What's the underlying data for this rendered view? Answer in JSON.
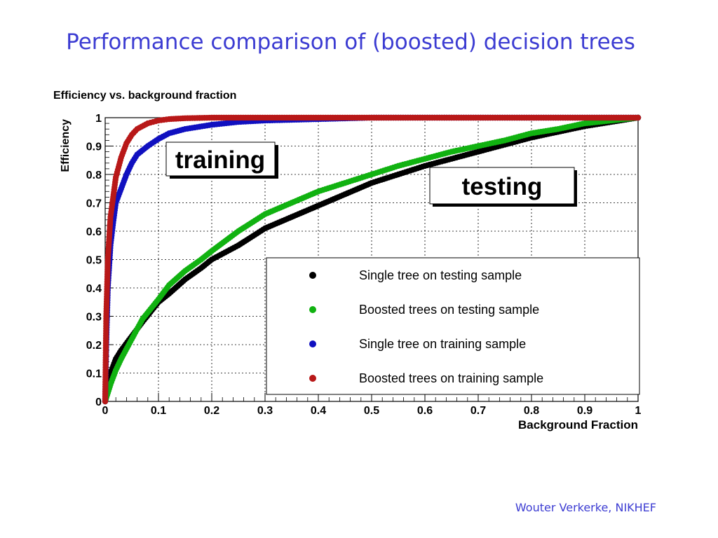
{
  "slide": {
    "title": "Performance comparison of (boosted) decision trees",
    "footer": "Wouter Verkerke, NIKHEF"
  },
  "chart_data": {
    "type": "scatter",
    "title": "Efficiency vs. background fraction",
    "xlabel": "Background Fraction",
    "ylabel": "Efficiency",
    "xlim": [
      0,
      1
    ],
    "ylim": [
      0,
      1
    ],
    "xticks": [
      "0",
      "0.1",
      "0.2",
      "0.3",
      "0.4",
      "0.5",
      "0.6",
      "0.7",
      "0.8",
      "0.9",
      "1"
    ],
    "yticks": [
      "0",
      "0.1",
      "0.2",
      "0.3",
      "0.4",
      "0.5",
      "0.6",
      "0.7",
      "0.8",
      "0.9",
      "1"
    ],
    "grid": true,
    "legend_position": "bottom-right",
    "annotations": [
      "training",
      "testing"
    ],
    "series": [
      {
        "name": "Single tree on testing sample",
        "color": "#000000",
        "x": [
          0,
          0.005,
          0.01,
          0.02,
          0.03,
          0.05,
          0.07,
          0.1,
          0.12,
          0.15,
          0.18,
          0.2,
          0.25,
          0.3,
          0.35,
          0.4,
          0.45,
          0.5,
          0.55,
          0.6,
          0.65,
          0.7,
          0.75,
          0.8,
          0.85,
          0.9,
          0.95,
          1
        ],
        "y": [
          0,
          0.05,
          0.1,
          0.15,
          0.18,
          0.23,
          0.28,
          0.35,
          0.38,
          0.43,
          0.47,
          0.5,
          0.55,
          0.61,
          0.65,
          0.69,
          0.73,
          0.77,
          0.8,
          0.83,
          0.855,
          0.88,
          0.905,
          0.93,
          0.95,
          0.97,
          0.985,
          1
        ]
      },
      {
        "name": "Boosted trees on testing sample",
        "color": "#11b211",
        "x": [
          0,
          0.005,
          0.01,
          0.02,
          0.03,
          0.05,
          0.07,
          0.1,
          0.12,
          0.15,
          0.18,
          0.2,
          0.25,
          0.3,
          0.35,
          0.4,
          0.45,
          0.5,
          0.55,
          0.6,
          0.65,
          0.7,
          0.75,
          0.8,
          0.85,
          0.9,
          0.95,
          1
        ],
        "y": [
          0,
          0.03,
          0.06,
          0.11,
          0.15,
          0.22,
          0.29,
          0.36,
          0.41,
          0.46,
          0.5,
          0.53,
          0.6,
          0.66,
          0.7,
          0.74,
          0.77,
          0.8,
          0.83,
          0.855,
          0.88,
          0.9,
          0.92,
          0.945,
          0.96,
          0.98,
          0.99,
          1
        ]
      },
      {
        "name": "Single tree on training sample",
        "color": "#1010c0",
        "x": [
          0,
          0.002,
          0.005,
          0.01,
          0.015,
          0.02,
          0.03,
          0.04,
          0.05,
          0.06,
          0.08,
          0.1,
          0.12,
          0.15,
          0.2,
          0.25,
          0.3,
          0.4,
          0.5,
          0.6,
          0.7,
          0.8,
          0.9,
          1
        ],
        "y": [
          0,
          0.2,
          0.4,
          0.55,
          0.63,
          0.7,
          0.75,
          0.8,
          0.84,
          0.87,
          0.9,
          0.925,
          0.945,
          0.96,
          0.975,
          0.985,
          0.99,
          0.995,
          1,
          1,
          1,
          1,
          1,
          1
        ]
      },
      {
        "name": "Boosted trees on training sample",
        "color": "#b81818",
        "x": [
          0,
          0.002,
          0.005,
          0.01,
          0.015,
          0.02,
          0.03,
          0.04,
          0.05,
          0.06,
          0.08,
          0.1,
          0.12,
          0.15,
          0.2,
          0.25,
          0.3,
          0.4,
          0.5,
          0.6,
          0.7,
          0.8,
          0.9,
          1
        ],
        "y": [
          0,
          0.3,
          0.5,
          0.65,
          0.72,
          0.79,
          0.86,
          0.91,
          0.94,
          0.96,
          0.98,
          0.99,
          0.995,
          0.998,
          1,
          1,
          1,
          1,
          1,
          1,
          1,
          1,
          1,
          1
        ]
      }
    ]
  }
}
